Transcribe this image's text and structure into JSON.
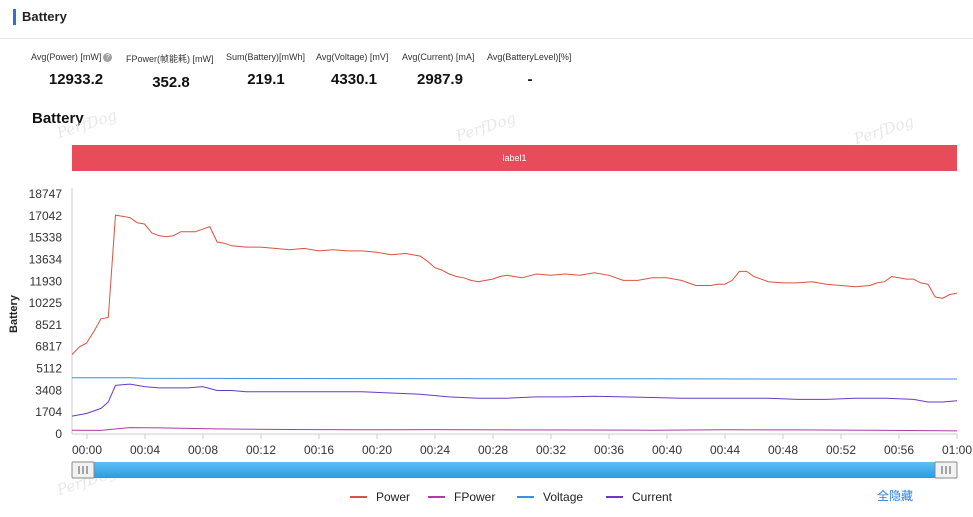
{
  "header": {
    "title": "Battery"
  },
  "stats": [
    {
      "label": "Avg(Power) [mW]",
      "value": "12933.2",
      "help": true
    },
    {
      "label": "FPower(帧能耗) [mW]",
      "value": "352.8"
    },
    {
      "label": "Sum(Battery)[mWh]",
      "value": "219.1"
    },
    {
      "label": "Avg(Voltage) [mV]",
      "value": "4330.1"
    },
    {
      "label": "Avg(Current) [mA]",
      "value": "2987.9"
    },
    {
      "label": "Avg(BatteryLevel)[%]",
      "value": "-"
    }
  ],
  "help_glyph": "?",
  "watermark": "PerfDog",
  "hide_all_label": "全隐藏",
  "chart_data": {
    "type": "line",
    "title": "Battery",
    "ylabel": "Battery",
    "xlabel": "",
    "label_band": "label1",
    "ylim": [
      0,
      18747
    ],
    "yticks": [
      0,
      1704,
      3408,
      5112,
      6817,
      8521,
      10225,
      11930,
      13634,
      15338,
      17042,
      18747
    ],
    "xticks": [
      "00:00",
      "00:04",
      "00:08",
      "00:12",
      "00:16",
      "00:20",
      "00:24",
      "00:28",
      "00:32",
      "00:36",
      "00:40",
      "00:44",
      "00:48",
      "00:52",
      "00:56",
      "01:00"
    ],
    "xrange_seconds": [
      0,
      3660
    ],
    "grid": false,
    "legend_position": "bottom",
    "series": [
      {
        "name": "Power",
        "color": "#d9543f",
        "x": [
          0,
          30,
          60,
          90,
          120,
          150,
          180,
          210,
          240,
          270,
          300,
          330,
          360,
          390,
          420,
          450,
          480,
          510,
          540,
          570,
          600,
          630,
          660,
          720,
          780,
          840,
          900,
          960,
          1020,
          1080,
          1140,
          1200,
          1260,
          1320,
          1380,
          1440,
          1470,
          1500,
          1530,
          1560,
          1590,
          1620,
          1650,
          1680,
          1710,
          1740,
          1770,
          1800,
          1860,
          1920,
          1980,
          2040,
          2100,
          2160,
          2220,
          2280,
          2340,
          2400,
          2460,
          2520,
          2580,
          2610,
          2640,
          2670,
          2700,
          2730,
          2760,
          2790,
          2820,
          2880,
          2940,
          3000,
          3060,
          3120,
          3180,
          3240,
          3300,
          3330,
          3360,
          3390,
          3420,
          3450,
          3480,
          3510,
          3540,
          3570,
          3600,
          3630,
          3660
        ],
        "y": [
          6200,
          6800,
          7100,
          8000,
          9000,
          9100,
          17100,
          17000,
          16900,
          16500,
          16400,
          15700,
          15500,
          15400,
          15500,
          15800,
          15800,
          15800,
          16000,
          16200,
          15000,
          14900,
          14700,
          14600,
          14600,
          14500,
          14400,
          14500,
          14300,
          14400,
          14300,
          14300,
          14200,
          14000,
          14100,
          13900,
          13500,
          13000,
          12800,
          12500,
          12300,
          12200,
          12000,
          11900,
          12000,
          12100,
          12300,
          12400,
          12200,
          12500,
          12400,
          12500,
          12400,
          12600,
          12400,
          12000,
          12000,
          12200,
          12200,
          12000,
          11600,
          11600,
          11600,
          11700,
          11700,
          12000,
          12700,
          12700,
          12300,
          11900,
          11800,
          11800,
          11900,
          11700,
          11600,
          11500,
          11600,
          11800,
          11900,
          12300,
          12200,
          12100,
          12100,
          11800,
          11700,
          10700,
          10600,
          10900,
          11000
        ]
      },
      {
        "name": "FPower",
        "color": "#b03aa8",
        "x": [
          0,
          120,
          240,
          360,
          600,
          900,
          1200,
          1500,
          1800,
          2100,
          2400,
          2700,
          3000,
          3300,
          3600,
          3660
        ],
        "y": [
          300,
          280,
          500,
          480,
          400,
          350,
          330,
          340,
          320,
          310,
          300,
          330,
          320,
          300,
          250,
          240
        ]
      },
      {
        "name": "Voltage",
        "color": "#3d8ee0",
        "x": [
          0,
          120,
          240,
          300,
          600,
          1200,
          1800,
          2400,
          3000,
          3660
        ],
        "y": [
          4400,
          4400,
          4400,
          4350,
          4340,
          4330,
          4320,
          4310,
          4300,
          4300
        ]
      },
      {
        "name": "Current",
        "color": "#6b39c9",
        "x": [
          0,
          60,
          120,
          150,
          180,
          240,
          300,
          360,
          420,
          480,
          540,
          600,
          660,
          720,
          840,
          960,
          1080,
          1200,
          1320,
          1440,
          1560,
          1680,
          1740,
          1800,
          1920,
          2040,
          2160,
          2280,
          2400,
          2520,
          2640,
          2760,
          2880,
          3000,
          3120,
          3240,
          3360,
          3480,
          3540,
          3600,
          3660
        ],
        "y": [
          1400,
          1600,
          2000,
          2500,
          3800,
          3900,
          3700,
          3600,
          3600,
          3600,
          3700,
          3400,
          3400,
          3300,
          3300,
          3300,
          3300,
          3300,
          3200,
          3100,
          2900,
          2800,
          2800,
          2800,
          2900,
          2900,
          2950,
          2900,
          2850,
          2800,
          2800,
          2800,
          2800,
          2700,
          2700,
          2800,
          2800,
          2700,
          2500,
          2500,
          2600
        ]
      }
    ]
  }
}
